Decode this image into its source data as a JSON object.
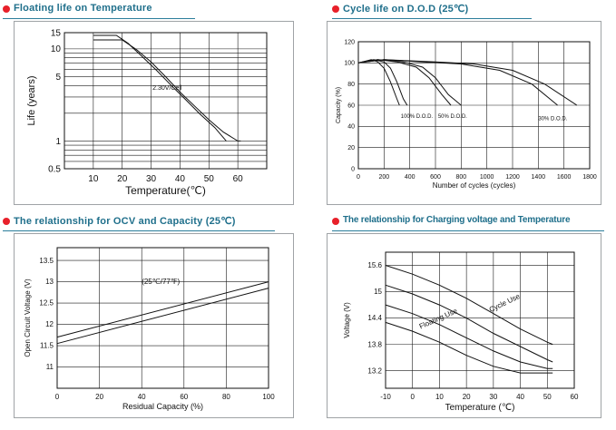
{
  "colors": {
    "accent_red": "#e8202a",
    "title_teal": "#1f6f8b"
  },
  "panels": {
    "float_life": {
      "title": "Floating life on Temperature"
    },
    "cycle_life": {
      "title": "Cycle life on D.O.D (25℃)"
    },
    "ocv": {
      "title": "The relationship  for OCV and Capacity (25℃)"
    },
    "charge_v": {
      "title": "The relationship for Charging voltage and Temperature"
    }
  },
  "chart_data": [
    {
      "id": "float_life",
      "type": "line",
      "xlabel": "Temperature(℃)",
      "ylabel": "Life (years)",
      "xlim": [
        0,
        70
      ],
      "ylim": [
        0.5,
        15
      ],
      "yscale": "log",
      "x_ticks": [
        10,
        20,
        30,
        40,
        50,
        60
      ],
      "y_ticks": [
        "15",
        "10",
        "5",
        "1",
        "0.5"
      ],
      "grid": true,
      "annotations": [
        "2.30V/Cell"
      ],
      "series": [
        {
          "x": [
            10,
            20,
            25,
            30,
            35,
            40,
            45,
            50,
            55,
            60,
            61
          ],
          "y": [
            12.5,
            12.5,
            9.8,
            7.2,
            5.0,
            3.4,
            2.4,
            1.7,
            1.25,
            1.0,
            1.0
          ]
        },
        {
          "x": [
            10,
            18,
            22,
            27,
            32,
            37,
            42,
            47,
            52,
            56
          ],
          "y": [
            14,
            14,
            11.5,
            8.2,
            5.8,
            4.0,
            2.8,
            1.95,
            1.4,
            1.0
          ]
        }
      ]
    },
    {
      "id": "cycle_life",
      "type": "line",
      "xlabel": "Number of cycles (cycles)",
      "ylabel": "Capacity (%)",
      "xlim": [
        0,
        1800
      ],
      "ylim": [
        0,
        120
      ],
      "x_ticks": [
        0,
        200,
        400,
        600,
        800,
        1000,
        1200,
        1400,
        1600,
        1800
      ],
      "y_ticks": [
        0,
        20,
        40,
        60,
        80,
        100,
        120
      ],
      "grid": true,
      "series": [
        {
          "name": "100% D.O.D.",
          "x": [
            0,
            100,
            150,
            200,
            250,
            300,
            320
          ],
          "y": [
            100,
            103,
            101,
            95,
            82,
            66,
            60
          ]
        },
        {
          "name": "100% D.O.D.",
          "x": [
            0,
            120,
            200,
            250,
            300,
            350,
            380
          ],
          "y": [
            100,
            103,
            101,
            95,
            82,
            66,
            60
          ]
        },
        {
          "name": "50% D.O.D.",
          "x": [
            0,
            150,
            300,
            450,
            550,
            650,
            720
          ],
          "y": [
            100,
            103,
            101,
            96,
            86,
            70,
            60
          ]
        },
        {
          "name": "50% D.O.D.",
          "x": [
            0,
            150,
            350,
            500,
            600,
            700,
            800
          ],
          "y": [
            100,
            103,
            101,
            96,
            86,
            70,
            60
          ]
        },
        {
          "name": "30% D.O.D.",
          "x": [
            0,
            200,
            500,
            800,
            1100,
            1350,
            1550
          ],
          "y": [
            100,
            103,
            101,
            99,
            93,
            80,
            60
          ]
        },
        {
          "name": "30% D.O.D.",
          "x": [
            0,
            200,
            600,
            900,
            1200,
            1450,
            1700
          ],
          "y": [
            100,
            103,
            101,
            99,
            93,
            80,
            60
          ]
        }
      ]
    },
    {
      "id": "ocv",
      "type": "line",
      "xlabel": "Residual Capacity (%)",
      "ylabel": "Open Circuit Voltage (V)",
      "xlim": [
        0,
        100
      ],
      "ylim": [
        10.5,
        13.8
      ],
      "x_ticks": [
        0,
        20,
        40,
        60,
        80,
        100
      ],
      "y_ticks": [
        11.0,
        11.5,
        12.0,
        12.5,
        13.0,
        13.5
      ],
      "grid": true,
      "annotations": [
        "(25℃/77℉)"
      ],
      "series": [
        {
          "x": [
            0,
            100
          ],
          "y": [
            11.7,
            13.0
          ]
        },
        {
          "x": [
            0,
            100
          ],
          "y": [
            11.55,
            12.85
          ]
        }
      ]
    },
    {
      "id": "charge_v",
      "type": "line",
      "xlabel": "Temperature (℃)",
      "ylabel": "Voltage (V)",
      "xlim": [
        -10,
        60
      ],
      "ylim": [
        12.8,
        15.9
      ],
      "x_ticks": [
        -10,
        0,
        10,
        20,
        30,
        40,
        50,
        60
      ],
      "y_ticks": [
        13.2,
        13.8,
        14.4,
        15.0,
        15.6
      ],
      "grid": true,
      "series": [
        {
          "name": "Cycle Use",
          "x": [
            -10,
            0,
            10,
            20,
            30,
            40,
            50,
            52
          ],
          "y": [
            15.6,
            15.4,
            15.15,
            14.85,
            14.5,
            14.15,
            13.85,
            13.8
          ]
        },
        {
          "name": "Cycle Use",
          "x": [
            -10,
            0,
            10,
            20,
            30,
            40,
            50,
            52
          ],
          "y": [
            15.15,
            14.95,
            14.7,
            14.4,
            14.05,
            13.75,
            13.45,
            13.4
          ]
        },
        {
          "name": "Floating Use",
          "x": [
            -10,
            0,
            10,
            20,
            30,
            40,
            50,
            52
          ],
          "y": [
            14.7,
            14.5,
            14.25,
            13.95,
            13.65,
            13.4,
            13.25,
            13.25
          ]
        },
        {
          "name": "Floating Use",
          "x": [
            -10,
            0,
            10,
            20,
            30,
            40,
            50,
            52
          ],
          "y": [
            14.3,
            14.1,
            13.85,
            13.55,
            13.3,
            13.15,
            13.15,
            13.15
          ]
        }
      ]
    }
  ]
}
